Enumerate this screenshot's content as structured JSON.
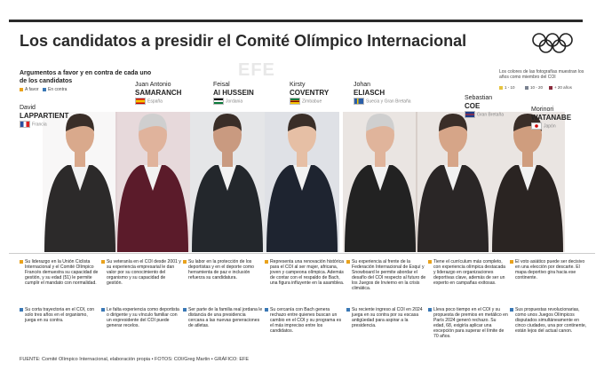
{
  "header": {
    "title": "Los candidatos a presidir el Comité Olímpico Internacional",
    "watermark": "EFE"
  },
  "legend": {
    "title": "Argumentos a favor y en contra de cada uno de los candidatos",
    "pro": "A favor",
    "con": "En contra"
  },
  "color_legend": {
    "title": "Los colores de las fotografías muestran los años como miembro del COI",
    "items": [
      "1 - 10",
      "10 - 20",
      "+ 20 años"
    ]
  },
  "candidates": [
    {
      "first_name": "David",
      "last_name": "LAPPARTIENT",
      "country": "Francia",
      "pro": "Su liderazgo en la Unión Ciclista Internacional y el Comité Olímpico Francés demuestra su capacidad de gestión, y su edad (51) le permite cumplir el mandato con normalidad.",
      "con": "Su corta trayectoria en el COI, con solo tres años en el organismo, juega en su contra."
    },
    {
      "first_name": "Juan Antonio",
      "last_name": "SAMARANCH",
      "country": "España",
      "pro": "Su veteranía en el COI desde 2001 y su experiencia empresarial le dan valor por su conocimiento del organismo y su capacidad de gestión.",
      "con": "Le falta experiencia como deportista o dirigente y su vínculo familiar con un expresidente del COI puede generar recelos."
    },
    {
      "first_name": "Feisal",
      "last_name": "Al HUSSEIN",
      "country": "Jordania",
      "pro": "Su labor en la protección de los deportistas y en el deporte como herramienta de paz e inclusión refuerza su candidatura.",
      "con": "Ser parte de la familia real jordana le distancia de una presidencia cercana a las nuevas generaciones de atletas."
    },
    {
      "first_name": "Kirsty",
      "last_name": "COVENTRY",
      "country": "Zimbabue",
      "pro": "Representa una renovación histórica para el COI al ser mujer, africana, joven y campeona olímpica. Además de contar con el respaldo de Bach, una figura influyente en la asamblea.",
      "con": "Su cercanía con Bach genera rechazo entre quienes buscan un cambio en el COI y su programa es el más impreciso entre los candidatos."
    },
    {
      "first_name": "Johan",
      "last_name": "ELIASCH",
      "country": "Suecia y Gran Bretaña",
      "pro": "Su experiencia al frente de la Federación Internacional de Esquí y Snowboard le permite abordar el desafío del COI respecto al futuro de los Juegos de Invierno en la crisis climática.",
      "con": "Su reciente ingreso al COI en 2024 juega en su contra por su escasa antigüedad para aspirar a la presidencia."
    },
    {
      "first_name": "Sebastian",
      "last_name": "COE",
      "country": "Gran Bretaña",
      "pro": "Tiene el currículum más completo, con experiencia olímpica destacada y liderazgo en organizaciones deportivas clave, además de ser un experto en campañas exitosas.",
      "con": "Lleva poco tiempo en el COI y su propuesta de premios en metálico en París 2024 generó rechazo. Su edad, 68, exigiría aplicar una excepción para superar el límite de 70 años."
    },
    {
      "first_name": "Morinori",
      "last_name": "WATANABE",
      "country": "Japón",
      "pro": "El voto asiático puede ser decisivo en una elección por descarte. El mapa deportivo gira hacia ese continente.",
      "con": "Sus propuestas revolucionarias, como unos Juegos Olímpicos disputados simultáneamente en cinco ciudades, una por continente, están lejos del actual canon."
    }
  ],
  "footer": "FUENTE: Comité Olímpico Internacional, elaboración propia • FOTOS: COI/Greg Martin • GRÁFICO: EFE"
}
